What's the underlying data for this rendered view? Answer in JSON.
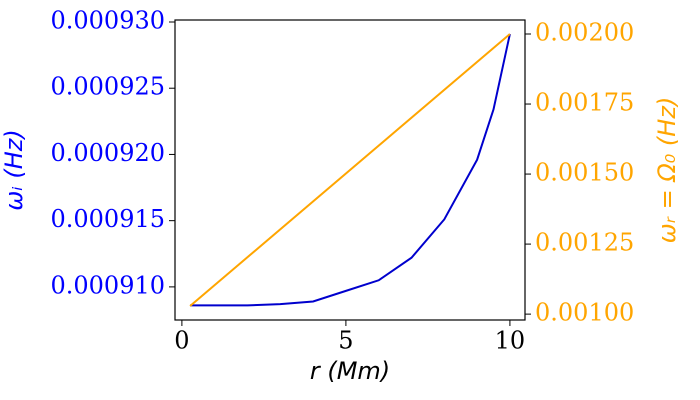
{
  "chart_data": {
    "type": "line",
    "xlabel": "r (Mm)",
    "ylabel": "ωᵢ (Hz)",
    "y2label": "ωᵣ = Ω₀ (Hz)",
    "xlim": [
      -0.21,
      10.46
    ],
    "xticks": [
      0,
      5,
      10
    ],
    "ylim": [
      0.0009075,
      0.00093015
    ],
    "yticks": [
      {
        "value": 0.00091,
        "label": "0.000910"
      },
      {
        "value": 0.000915,
        "label": "0.000915"
      },
      {
        "value": 0.00092,
        "label": "0.000920"
      },
      {
        "value": 0.000925,
        "label": "0.000925"
      },
      {
        "value": 0.00093,
        "label": "0.000930"
      }
    ],
    "y2lim": [
      0.000979,
      0.00205
    ],
    "y2ticks": [
      {
        "value": 0.001,
        "label": "0.00100"
      },
      {
        "value": 0.00125,
        "label": "0.00125"
      },
      {
        "value": 0.0015,
        "label": "0.00150"
      },
      {
        "value": 0.00175,
        "label": "0.00175"
      },
      {
        "value": 0.002,
        "label": "0.00200"
      }
    ],
    "ycolor": "#0000ff",
    "y2color": "#ffa500",
    "series": [
      {
        "color": "#0000cd",
        "x": [
          0.25,
          1,
          2,
          3,
          4,
          5,
          6,
          7,
          8,
          9,
          9.5,
          10
        ],
        "values": [
          0.0009086,
          0.0009086,
          0.0009086,
          0.0009087,
          0.0009089,
          0.0009097,
          0.0009105,
          0.0009122,
          0.0009151,
          0.0009196,
          0.0009234,
          0.0009291
        ]
      },
      {
        "color": "#ffa500",
        "axis": "y2",
        "x": [
          0.25,
          10
        ],
        "values": [
          0.001029,
          0.002
        ]
      }
    ]
  }
}
